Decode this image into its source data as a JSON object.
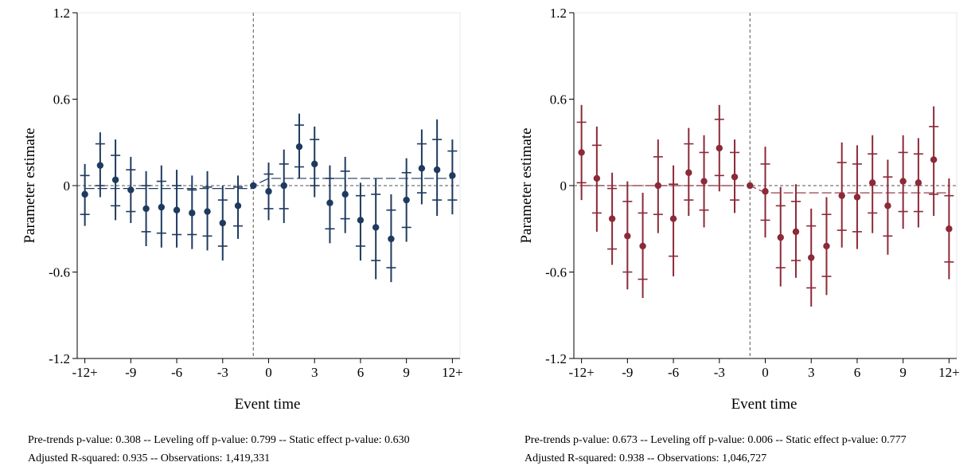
{
  "chart_data": [
    {
      "type": "scatter",
      "title": "",
      "xlabel": "Event time",
      "ylabel": "Parameter estimate",
      "xlim": [
        -12.5,
        12.5
      ],
      "ylim": [
        -1.2,
        1.2
      ],
      "x_ticks": [
        -12,
        -9,
        -6,
        -3,
        0,
        3,
        6,
        9,
        12
      ],
      "x_tick_labels": [
        "-12+",
        "-9",
        "-6",
        "-3",
        "0",
        "3",
        "6",
        "9",
        "12+"
      ],
      "y_ticks": [
        1.2,
        0.6,
        0,
        -0.6,
        -1.2
      ],
      "y_tick_labels": [
        "1.2",
        "0.6",
        "0",
        "-0.6",
        "-1.2"
      ],
      "reference_x": -1,
      "reference_y": 0,
      "color": "#1f3a5f",
      "x": [
        -12,
        -11,
        -10,
        -9,
        -8,
        -7,
        -6,
        -5,
        -4,
        -3,
        -2,
        -1,
        0,
        1,
        2,
        3,
        4,
        5,
        6,
        7,
        8,
        9,
        10,
        11,
        12
      ],
      "estimate": [
        -0.06,
        0.14,
        0.04,
        -0.03,
        -0.16,
        -0.15,
        -0.17,
        -0.19,
        -0.18,
        -0.26,
        -0.14,
        0.0,
        -0.04,
        0.0,
        0.27,
        0.15,
        -0.12,
        -0.06,
        -0.24,
        -0.29,
        -0.37,
        -0.1,
        0.12,
        0.11,
        0.07
      ],
      "ci90": [
        [
          -0.2,
          0.07
        ],
        [
          0.0,
          0.29
        ],
        [
          -0.14,
          0.21
        ],
        [
          -0.18,
          0.11
        ],
        [
          -0.32,
          0.0
        ],
        [
          -0.33,
          0.03
        ],
        [
          -0.34,
          0.0
        ],
        [
          -0.34,
          -0.03
        ],
        [
          -0.35,
          -0.01
        ],
        [
          -0.42,
          -0.1
        ],
        [
          -0.28,
          -0.01
        ],
        [
          0.0,
          0.0
        ],
        [
          -0.16,
          0.08
        ],
        [
          -0.16,
          0.15
        ],
        [
          0.13,
          0.42
        ],
        [
          0.0,
          0.32
        ],
        [
          -0.3,
          0.05
        ],
        [
          -0.23,
          0.1
        ],
        [
          -0.42,
          -0.07
        ],
        [
          -0.52,
          -0.06
        ],
        [
          -0.57,
          -0.17
        ],
        [
          -0.29,
          0.09
        ],
        [
          -0.05,
          0.29
        ],
        [
          -0.1,
          0.32
        ],
        [
          -0.1,
          0.24
        ]
      ],
      "ci95": [
        [
          -0.28,
          0.15
        ],
        [
          -0.08,
          0.37
        ],
        [
          -0.24,
          0.32
        ],
        [
          -0.26,
          0.2
        ],
        [
          -0.42,
          0.1
        ],
        [
          -0.43,
          0.14
        ],
        [
          -0.43,
          0.11
        ],
        [
          -0.44,
          0.07
        ],
        [
          -0.45,
          0.1
        ],
        [
          -0.52,
          0.0
        ],
        [
          -0.37,
          0.07
        ],
        [
          0.0,
          0.0
        ],
        [
          -0.24,
          0.16
        ],
        [
          -0.26,
          0.25
        ],
        [
          0.05,
          0.5
        ],
        [
          -0.08,
          0.41
        ],
        [
          -0.4,
          0.14
        ],
        [
          -0.33,
          0.2
        ],
        [
          -0.52,
          0.02
        ],
        [
          -0.65,
          0.05
        ],
        [
          -0.67,
          -0.06
        ],
        [
          -0.39,
          0.19
        ],
        [
          -0.13,
          0.39
        ],
        [
          -0.21,
          0.46
        ],
        [
          -0.2,
          0.32
        ]
      ],
      "fit_line": [
        [
          -12,
          -0.02
        ],
        [
          -1,
          -0.02
        ],
        [
          -1,
          0.0
        ],
        [
          0,
          0.05
        ],
        [
          12,
          0.05
        ]
      ],
      "notes": [
        "Pre-trends p-value: 0.308 -- Leveling off p-value: 0.799 -- Static effect p-value: 0.630",
        "Adjusted R-squared: 0.935 -- Observations: 1,419,331"
      ]
    },
    {
      "type": "scatter",
      "title": "",
      "xlabel": "Event time",
      "ylabel": "Parameter estimate",
      "xlim": [
        -12.5,
        12.5
      ],
      "ylim": [
        -1.2,
        1.2
      ],
      "x_ticks": [
        -12,
        -9,
        -6,
        -3,
        0,
        3,
        6,
        9,
        12
      ],
      "x_tick_labels": [
        "-12+",
        "-9",
        "-6",
        "-3",
        "0",
        "3",
        "6",
        "9",
        "12+"
      ],
      "y_ticks": [
        1.2,
        0.6,
        0,
        -0.6,
        -1.2
      ],
      "y_tick_labels": [
        "1.2",
        "0.6",
        "0",
        "-0.6",
        "-1.2"
      ],
      "reference_x": -1,
      "reference_y": 0,
      "color": "#8b2a38",
      "x": [
        -12,
        -11,
        -10,
        -9,
        -8,
        -7,
        -6,
        -5,
        -4,
        -3,
        -2,
        -1,
        0,
        1,
        2,
        3,
        4,
        5,
        6,
        7,
        8,
        9,
        10,
        11,
        12
      ],
      "estimate": [
        0.23,
        0.05,
        -0.23,
        -0.35,
        -0.42,
        0.0,
        -0.23,
        0.09,
        0.03,
        0.26,
        0.06,
        0.0,
        -0.04,
        -0.36,
        -0.32,
        -0.5,
        -0.42,
        -0.07,
        -0.08,
        0.02,
        -0.14,
        0.03,
        0.02,
        0.18,
        -0.3
      ],
      "ci90": [
        [
          0.02,
          0.44
        ],
        [
          -0.19,
          0.28
        ],
        [
          -0.44,
          -0.02
        ],
        [
          -0.6,
          -0.11
        ],
        [
          -0.65,
          -0.19
        ],
        [
          -0.2,
          0.2
        ],
        [
          -0.49,
          0.01
        ],
        [
          -0.1,
          0.29
        ],
        [
          -0.17,
          0.23
        ],
        [
          0.07,
          0.46
        ],
        [
          -0.1,
          0.23
        ],
        [
          0.0,
          0.0
        ],
        [
          -0.24,
          0.15
        ],
        [
          -0.57,
          -0.14
        ],
        [
          -0.52,
          -0.11
        ],
        [
          -0.71,
          -0.28
        ],
        [
          -0.63,
          -0.2
        ],
        [
          -0.31,
          0.16
        ],
        [
          -0.32,
          0.15
        ],
        [
          -0.19,
          0.22
        ],
        [
          -0.35,
          0.06
        ],
        [
          -0.18,
          0.23
        ],
        [
          -0.18,
          0.22
        ],
        [
          -0.06,
          0.41
        ],
        [
          -0.53,
          -0.07
        ]
      ],
      "ci95": [
        [
          -0.1,
          0.56
        ],
        [
          -0.32,
          0.41
        ],
        [
          -0.55,
          0.09
        ],
        [
          -0.72,
          0.03
        ],
        [
          -0.78,
          -0.05
        ],
        [
          -0.33,
          0.32
        ],
        [
          -0.63,
          0.14
        ],
        [
          -0.21,
          0.4
        ],
        [
          -0.29,
          0.35
        ],
        [
          -0.04,
          0.56
        ],
        [
          -0.19,
          0.32
        ],
        [
          0.0,
          0.0
        ],
        [
          -0.36,
          0.27
        ],
        [
          -0.7,
          -0.01
        ],
        [
          -0.64,
          0.01
        ],
        [
          -0.84,
          -0.16
        ],
        [
          -0.76,
          -0.08
        ],
        [
          -0.43,
          0.3
        ],
        [
          -0.44,
          0.28
        ],
        [
          -0.33,
          0.35
        ],
        [
          -0.48,
          0.18
        ],
        [
          -0.3,
          0.35
        ],
        [
          -0.29,
          0.33
        ],
        [
          -0.21,
          0.55
        ],
        [
          -0.65,
          0.05
        ]
      ],
      "fit_line": [
        [
          -12,
          0.0
        ],
        [
          -1,
          0.0
        ],
        [
          -1,
          0.0
        ],
        [
          0,
          -0.05
        ],
        [
          12,
          -0.05
        ]
      ],
      "notes": [
        "Pre-trends p-value: 0.673 -- Leveling off p-value: 0.006 -- Static effect p-value: 0.777",
        "Adjusted R-squared: 0.938 -- Observations: 1,046,727"
      ]
    }
  ]
}
